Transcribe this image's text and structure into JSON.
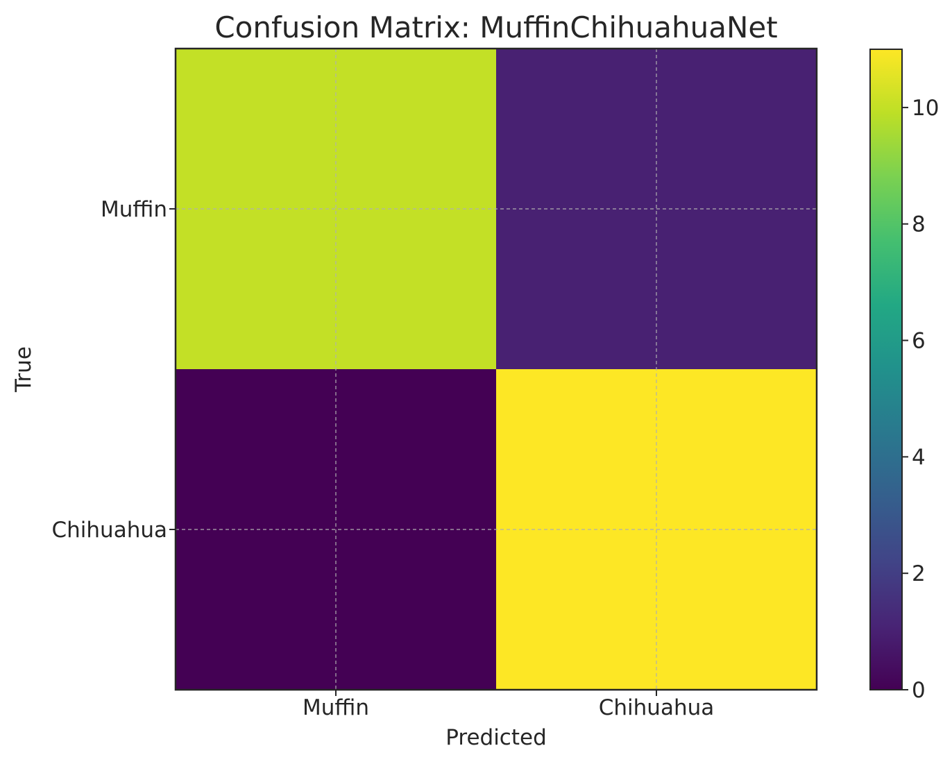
{
  "chart_data": {
    "type": "heatmap",
    "title": "Confusion Matrix: MuffinChihuahuaNet",
    "xlabel": "Predicted",
    "ylabel": "True",
    "x_categories": [
      "Muffin",
      "Chihuahua"
    ],
    "y_categories": [
      "Muffin",
      "Chihuahua"
    ],
    "values": [
      [
        10,
        1
      ],
      [
        0,
        11
      ]
    ],
    "colormap": "viridis",
    "color_range": [
      0,
      11
    ],
    "colorbar": {
      "ticks": [
        0,
        2,
        4,
        6,
        8,
        10
      ],
      "tick_labels": [
        "0",
        "2",
        "4",
        "6",
        "8",
        "10"
      ]
    },
    "grid": true
  }
}
